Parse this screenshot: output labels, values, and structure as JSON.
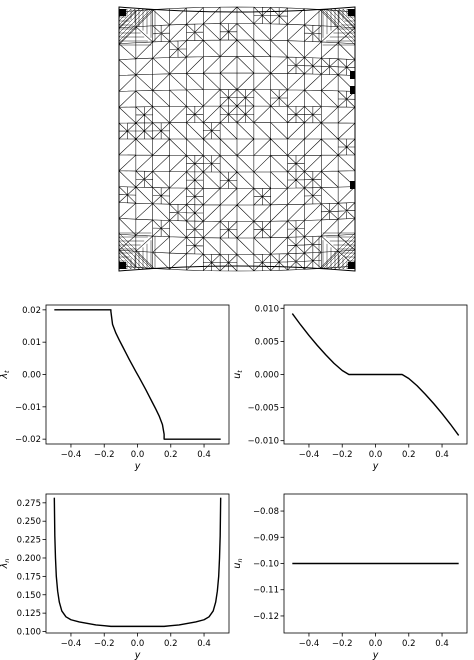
{
  "chart_data": [
    {
      "type": "line",
      "ylabel": "λ_t",
      "xlabel": "y",
      "xlim": [
        -0.55,
        0.55
      ],
      "ylim": [
        -0.0215,
        0.0215
      ],
      "xticks": [
        "-0.4",
        "-0.2",
        "0.0",
        "0.2",
        "0.4"
      ],
      "yticks": [
        "0.02",
        "0.01",
        "0.00",
        "-0.01",
        "-0.02"
      ],
      "series": [
        {
          "x": [
            -0.5,
            -0.16,
            -0.16,
            -0.15,
            -0.13,
            -0.11,
            -0.09,
            -0.07,
            -0.05,
            -0.03,
            -0.01,
            0.01,
            0.03,
            0.05,
            0.07,
            0.09,
            0.11,
            0.13,
            0.15,
            0.16,
            0.16,
            0.5
          ],
          "y": [
            0.02,
            0.02,
            0.0195,
            0.0155,
            0.0128,
            0.0107,
            0.0087,
            0.0067,
            0.0047,
            0.0028,
            0.0009,
            -0.0009,
            -0.0028,
            -0.0047,
            -0.0067,
            -0.0087,
            -0.0107,
            -0.0128,
            -0.0155,
            -0.0185,
            -0.02,
            -0.02
          ]
        }
      ]
    },
    {
      "type": "line",
      "ylabel": "u_t",
      "xlabel": "y",
      "xlim": [
        -0.55,
        0.55
      ],
      "ylim": [
        -0.0105,
        0.0105
      ],
      "xticks": [
        "-0.4",
        "-0.2",
        "0.0",
        "0.2",
        "0.4"
      ],
      "yticks": [
        "0.010",
        "0.005",
        "0.000",
        "-0.005",
        "-0.010"
      ],
      "series": [
        {
          "x": [
            -0.5,
            -0.45,
            -0.4,
            -0.35,
            -0.3,
            -0.25,
            -0.2,
            -0.16,
            0.16,
            0.2,
            0.25,
            0.3,
            0.35,
            0.4,
            0.45,
            0.5
          ],
          "y": [
            0.0092,
            0.0075,
            0.0059,
            0.0044,
            0.003,
            0.0017,
            0.0006,
            0.0,
            0.0,
            -0.0006,
            -0.0017,
            -0.003,
            -0.0044,
            -0.0059,
            -0.0075,
            -0.0092
          ]
        }
      ]
    },
    {
      "type": "line",
      "ylabel": "λ_n",
      "xlabel": "y",
      "xlim": [
        -0.55,
        0.55
      ],
      "ylim": [
        0.098,
        0.287
      ],
      "xticks": [
        "-0.4",
        "-0.2",
        "0.0",
        "0.2",
        "0.4"
      ],
      "yticks": [
        "0.275",
        "0.250",
        "0.225",
        "0.200",
        "0.175",
        "0.150",
        "0.125",
        "0.100"
      ],
      "series": [
        {
          "x": [
            -0.5,
            -0.497,
            -0.493,
            -0.488,
            -0.48,
            -0.47,
            -0.455,
            -0.43,
            -0.4,
            -0.35,
            -0.3,
            -0.25,
            -0.2,
            -0.16,
            0.16,
            0.2,
            0.25,
            0.3,
            0.35,
            0.4,
            0.43,
            0.455,
            0.47,
            0.48,
            0.488,
            0.493,
            0.497,
            0.5
          ],
          "y": [
            0.282,
            0.23,
            0.2,
            0.175,
            0.155,
            0.14,
            0.128,
            0.12,
            0.116,
            0.113,
            0.111,
            0.109,
            0.108,
            0.107,
            0.107,
            0.108,
            0.109,
            0.111,
            0.113,
            0.116,
            0.12,
            0.128,
            0.14,
            0.155,
            0.175,
            0.2,
            0.23,
            0.282
          ]
        }
      ]
    },
    {
      "type": "line",
      "ylabel": "u_n",
      "xlabel": "y",
      "xlim": [
        -0.55,
        0.55
      ],
      "ylim": [
        -0.1265,
        -0.0735
      ],
      "xticks": [
        "-0.4",
        "-0.2",
        "0.0",
        "0.2",
        "0.4"
      ],
      "yticks": [
        "-0.08",
        "-0.09",
        "-0.10",
        "-0.11",
        "-0.12"
      ],
      "series": [
        {
          "x": [
            -0.5,
            0.5
          ],
          "y": [
            -0.1,
            -0.1
          ]
        }
      ]
    }
  ]
}
